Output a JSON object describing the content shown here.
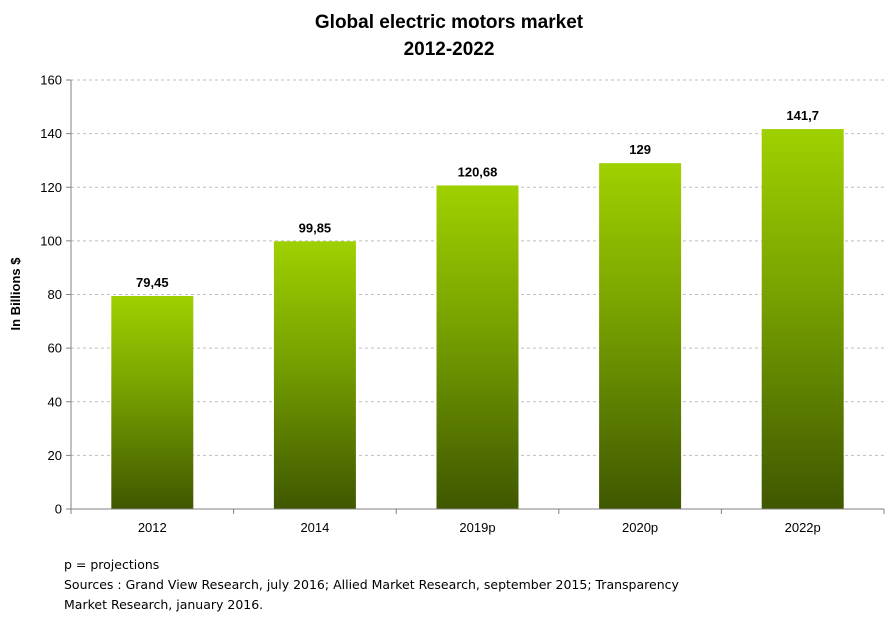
{
  "chart_data": {
    "type": "bar",
    "title": [
      "Global electric motors market",
      "2012-2022"
    ],
    "xlabel": "",
    "ylabel": "In Billions $",
    "categories": [
      "2012",
      "2014",
      "2019p",
      "2020p",
      "2022p"
    ],
    "values": [
      79.45,
      99.85,
      120.68,
      129,
      141.7
    ],
    "value_labels": [
      "79,45",
      "99,85",
      "120,68",
      "129",
      "141,7"
    ],
    "ylim": [
      0,
      160
    ],
    "yticks": [
      0,
      20,
      40,
      60,
      80,
      100,
      120,
      140,
      160
    ],
    "grid": true,
    "legend": "none",
    "colors": {
      "bar_top": "#9fd100",
      "bar_bottom": "#3f5700",
      "grid": "#bfbfbf",
      "axis": "#808080"
    }
  },
  "notes": {
    "legend_line": "p = projections",
    "sources_line1": "Sources : Grand View Research, july 2016; Allied Market Research, september 2015; Transparency",
    "sources_line2": "Market Research, january 2016."
  }
}
